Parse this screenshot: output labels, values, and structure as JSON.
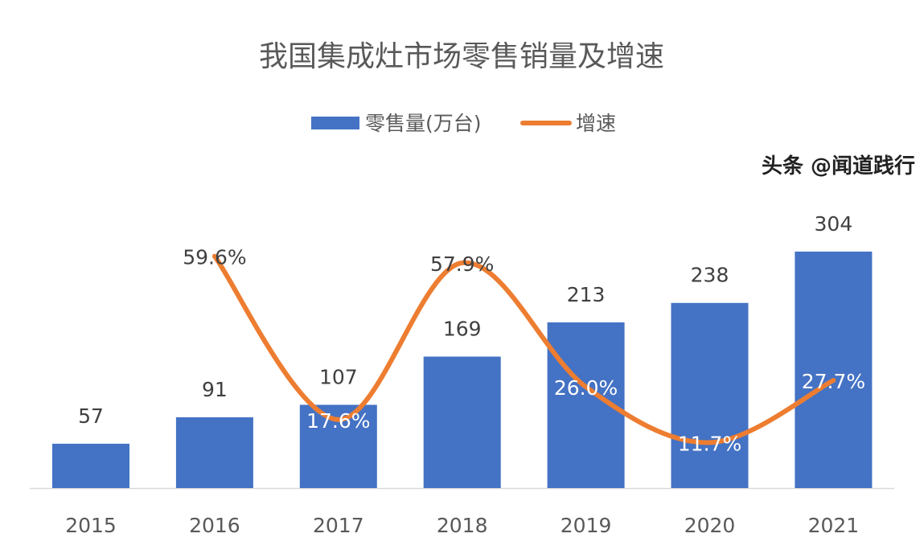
{
  "chart_data": {
    "type": "bar",
    "title": "我国集成灶市场零售销量及增速",
    "categories": [
      "2015",
      "2016",
      "2017",
      "2018",
      "2019",
      "2020",
      "2021"
    ],
    "series": [
      {
        "name": "零售量(万台)",
        "type": "bar",
        "color": "#4472C4",
        "values": [
          57,
          91,
          107,
          169,
          213,
          238,
          304
        ],
        "labels": [
          "57",
          "91",
          "107",
          "169",
          "213",
          "238",
          "304"
        ]
      },
      {
        "name": "增速",
        "type": "line",
        "smooth": true,
        "color": "#ED7D31",
        "axis": "secondary",
        "values": [
          null,
          59.6,
          17.6,
          57.9,
          26.0,
          11.7,
          27.7
        ],
        "labels": [
          "",
          "59.6%",
          "17.6%",
          "57.9%",
          "26.0%",
          "11.7%",
          "27.7%"
        ]
      }
    ],
    "ylim": [
      0,
      400
    ],
    "y2lim": [
      0,
      80
    ],
    "legend": "top",
    "grid": false
  },
  "watermark": "头条 @闻道践行"
}
